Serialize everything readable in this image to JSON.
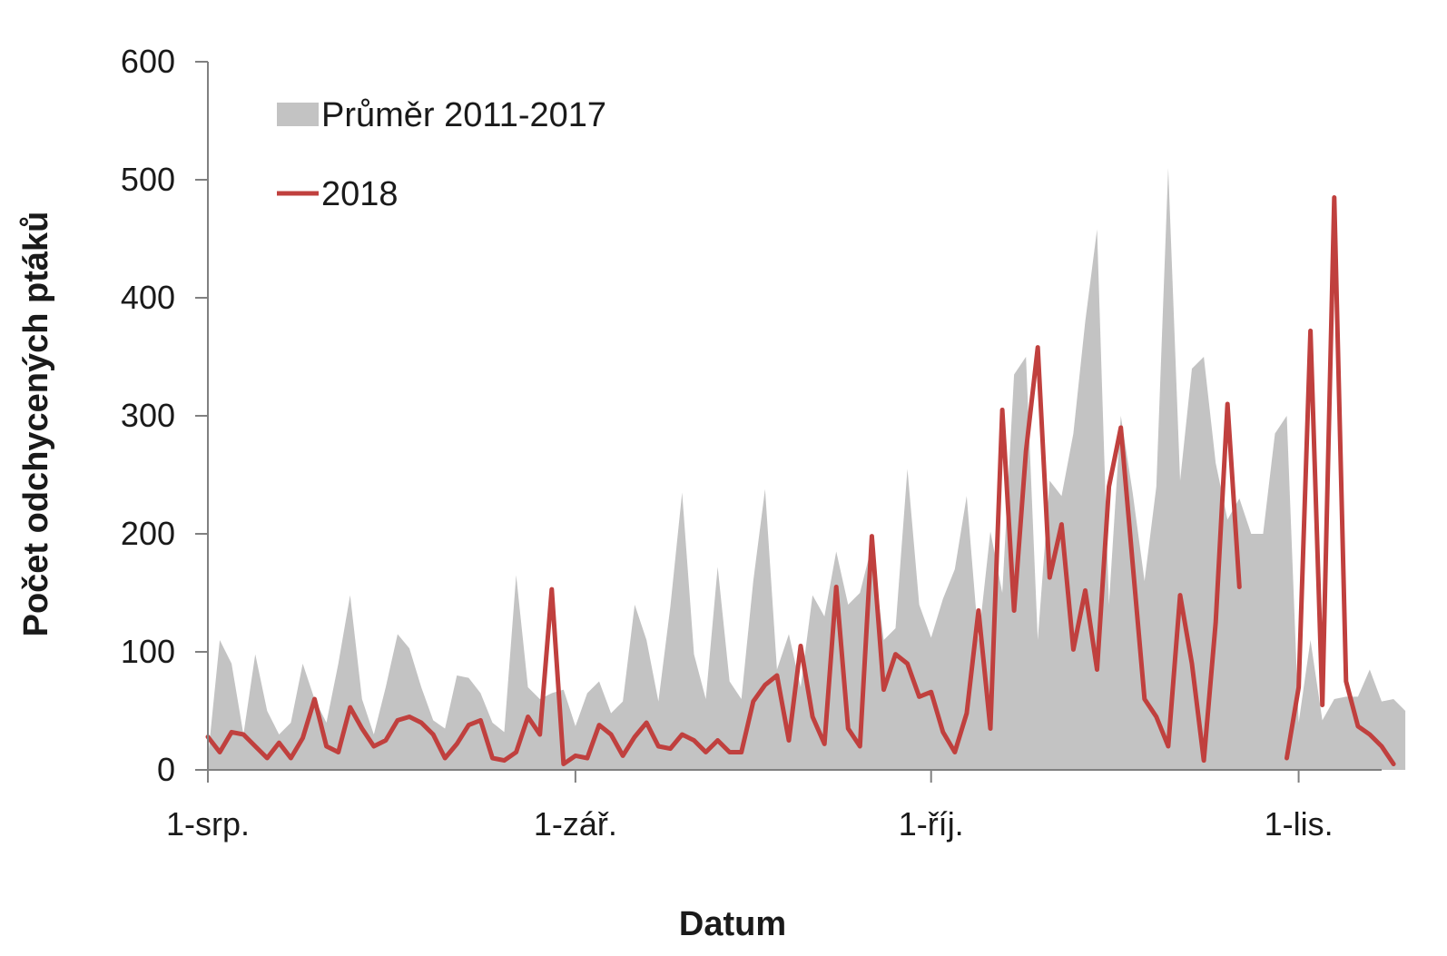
{
  "chart_data": {
    "type": "area",
    "xlabel": "Datum",
    "ylabel": "Počet odchycených ptáků",
    "ylim": [
      0,
      600
    ],
    "yticks": [
      0,
      100,
      200,
      300,
      400,
      500,
      600
    ],
    "x_tick_labels": [
      {
        "date": "2018-08-01",
        "label": "1-srp."
      },
      {
        "date": "2018-09-01",
        "label": "1-zář."
      },
      {
        "date": "2018-10-01",
        "label": "1-říj."
      },
      {
        "date": "2018-11-01",
        "label": "1-lis."
      }
    ],
    "x_range": [
      "2018-08-01",
      "2018-11-08"
    ],
    "grid": false,
    "legend_position": "top-left",
    "series": [
      {
        "name": "Průměr 2011-2017",
        "kind": "area",
        "color": "#c3c3c3",
        "x_start": "2018-08-01",
        "x_step_days": 1,
        "values": [
          10,
          110,
          90,
          30,
          98,
          50,
          30,
          40,
          90,
          60,
          40,
          90,
          148,
          60,
          30,
          70,
          115,
          103,
          70,
          42,
          35,
          80,
          78,
          65,
          40,
          32,
          165,
          70,
          60,
          65,
          68,
          37,
          65,
          75,
          48,
          58,
          140,
          110,
          58,
          138,
          235,
          98,
          60,
          172,
          75,
          60,
          160,
          238,
          85,
          115,
          70,
          148,
          130,
          185,
          140,
          150,
          190,
          110,
          120,
          255,
          140,
          112,
          145,
          170,
          232,
          110,
          202,
          150,
          335,
          350,
          110,
          245,
          232,
          285,
          380,
          458,
          140,
          300,
          235,
          160,
          240,
          510,
          245,
          340,
          350,
          260,
          212,
          230,
          200,
          200,
          285,
          300,
          40,
          110,
          42,
          60,
          62,
          62,
          85,
          58,
          60,
          50
        ]
      },
      {
        "name": "2018",
        "kind": "line",
        "color": "#c0403e",
        "x_start": "2018-08-01",
        "x_step_days": 1,
        "values": [
          28,
          15,
          32,
          30,
          20,
          10,
          23,
          10,
          27,
          60,
          20,
          15,
          53,
          35,
          20,
          25,
          42,
          45,
          40,
          30,
          10,
          22,
          38,
          42,
          10,
          8,
          15,
          45,
          30,
          153,
          5,
          12,
          10,
          38,
          30,
          12,
          28,
          40,
          20,
          18,
          30,
          25,
          15,
          25,
          15,
          15,
          58,
          72,
          80,
          25,
          105,
          45,
          22,
          155,
          35,
          20,
          198,
          68,
          98,
          90,
          62,
          66,
          32,
          15,
          48,
          135,
          35,
          305,
          135,
          270,
          358,
          163,
          208,
          102,
          152,
          85,
          240,
          290,
          175,
          60,
          45,
          20,
          148,
          90,
          8,
          125,
          310,
          155,
          null,
          null,
          null,
          10,
          70,
          372,
          55,
          485,
          75,
          37,
          30,
          20,
          5
        ]
      }
    ]
  }
}
